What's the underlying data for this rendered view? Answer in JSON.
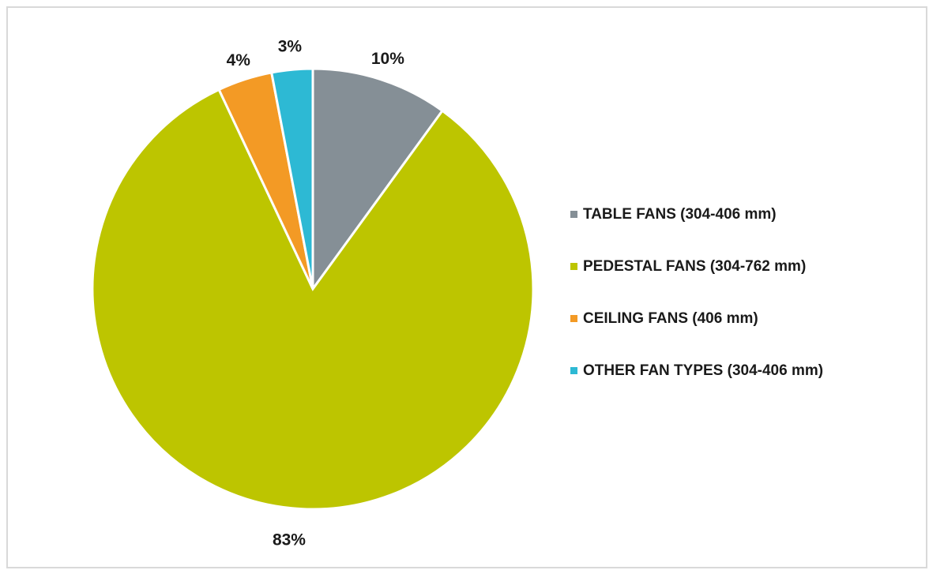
{
  "chart_data": {
    "type": "pie",
    "title": "",
    "legend_position": "right",
    "categories": [
      "TABLE FANS (304-406 mm)",
      "PEDESTAL FANS (304-762 mm)",
      "CEILING FANS (406 mm)",
      "OTHER FAN TYPES (304-406 mm)"
    ],
    "values": [
      10,
      83,
      4,
      3
    ],
    "labels": [
      "10%",
      "83%",
      "4%",
      "3%"
    ],
    "colors": [
      "#858f96",
      "#bdc500",
      "#f39a25",
      "#2db9d4"
    ]
  }
}
